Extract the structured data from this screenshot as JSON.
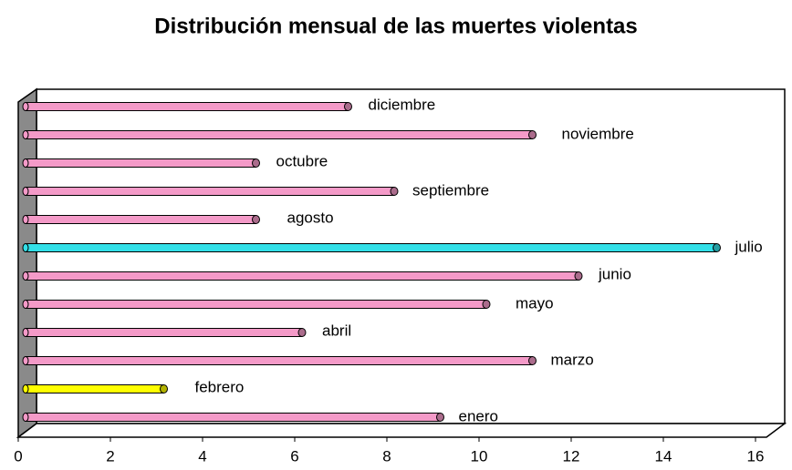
{
  "chart_data": {
    "type": "bar",
    "orientation": "horizontal",
    "title": "Distribución mensual de las muertes violentas",
    "categories": [
      "enero",
      "febrero",
      "marzo",
      "abril",
      "mayo",
      "junio",
      "julio",
      "agosto",
      "septiembre",
      "octubre",
      "noviembre",
      "diciembre"
    ],
    "series": [
      {
        "values": [
          9,
          3,
          11,
          6,
          10,
          12,
          15,
          5,
          8,
          5,
          11,
          7
        ],
        "colors": [
          "#f49ac8",
          "#ffff00",
          "#f49ac8",
          "#f49ac8",
          "#f49ac8",
          "#f49ac8",
          "#33e0e8",
          "#f49ac8",
          "#f49ac8",
          "#f49ac8",
          "#f49ac8",
          "#f49ac8"
        ]
      }
    ],
    "xlim": [
      0,
      16
    ],
    "xticks": [
      0,
      2,
      4,
      6,
      8,
      10,
      12,
      14,
      16
    ]
  }
}
